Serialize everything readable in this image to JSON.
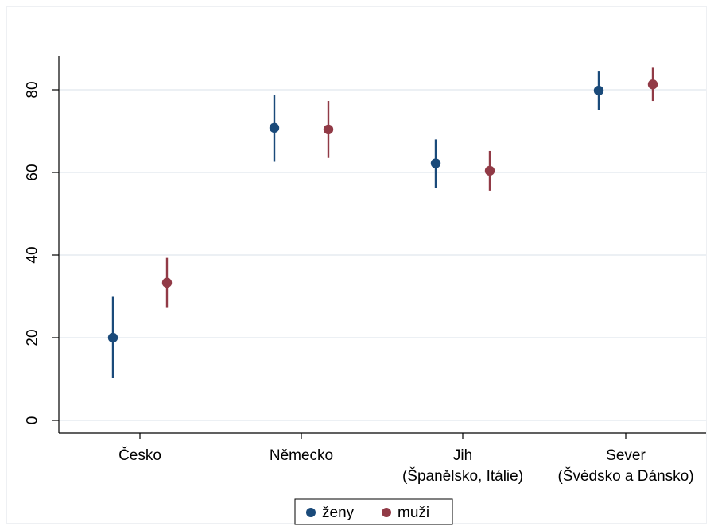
{
  "chart_data": {
    "type": "scatter",
    "subtype": "point-with-confidence-interval",
    "categories": [
      [
        "Česko"
      ],
      [
        "Německo"
      ],
      [
        "Jih",
        "(Španělsko, Itálie)"
      ],
      [
        "Sever",
        "(Švédsko a Dánsko)"
      ]
    ],
    "y_ticks": [
      "0",
      "20",
      "40",
      "60",
      "80"
    ],
    "ylim": [
      0,
      90
    ],
    "grid": "horizontal",
    "legend_position": "bottom-center",
    "series": [
      {
        "name": "ženy",
        "color": "#1a4a7a",
        "values": [
          20.0,
          70.8,
          62.2,
          79.8
        ],
        "ci_low": [
          10.2,
          62.6,
          56.3,
          75.0
        ],
        "ci_high": [
          29.9,
          78.7,
          68.0,
          84.6
        ]
      },
      {
        "name": "muži",
        "color": "#913a46",
        "values": [
          33.3,
          70.4,
          60.4,
          81.3
        ],
        "ci_low": [
          27.2,
          63.5,
          55.6,
          77.3
        ],
        "ci_high": [
          39.3,
          77.3,
          65.2,
          85.5
        ]
      }
    ]
  }
}
